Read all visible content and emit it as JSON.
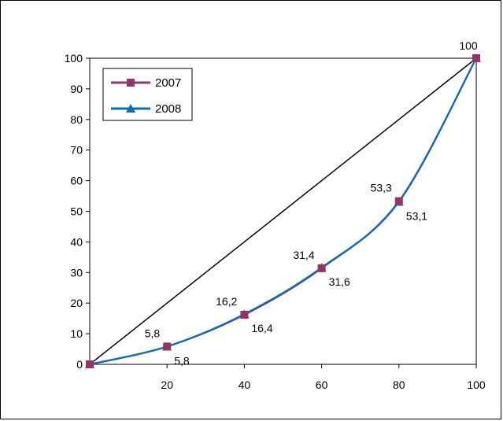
{
  "chart_data": {
    "type": "line",
    "title": "",
    "xlabel": "",
    "ylabel": "",
    "xlim": [
      0,
      100
    ],
    "ylim": [
      0,
      100
    ],
    "x_ticks": [
      "20",
      "40",
      "60",
      "80",
      "100"
    ],
    "y_ticks": [
      "0",
      "10",
      "20",
      "30",
      "40",
      "50",
      "60",
      "70",
      "80",
      "90",
      "100"
    ],
    "grid": false,
    "legend_position": "top-left",
    "reference_line": {
      "x": [
        0,
        100
      ],
      "y": [
        0,
        100
      ],
      "color": "#000000"
    },
    "series": [
      {
        "name": "2007",
        "color": "#993366",
        "marker": "square",
        "x": [
          0,
          20,
          40,
          60,
          80,
          100
        ],
        "values": [
          0,
          5.8,
          16.2,
          31.4,
          53.3,
          100
        ],
        "labels": [
          "",
          "5,8",
          "16,2",
          "31,4",
          "53,3",
          "100"
        ]
      },
      {
        "name": "2008",
        "color": "#0070C0",
        "marker": "triangle",
        "x": [
          0,
          20,
          40,
          60,
          80,
          100
        ],
        "values": [
          0,
          5.8,
          16.4,
          31.6,
          53.1,
          100
        ],
        "labels": [
          "",
          "5,8",
          "16,4",
          "31,6",
          "53,1",
          ""
        ]
      }
    ]
  }
}
